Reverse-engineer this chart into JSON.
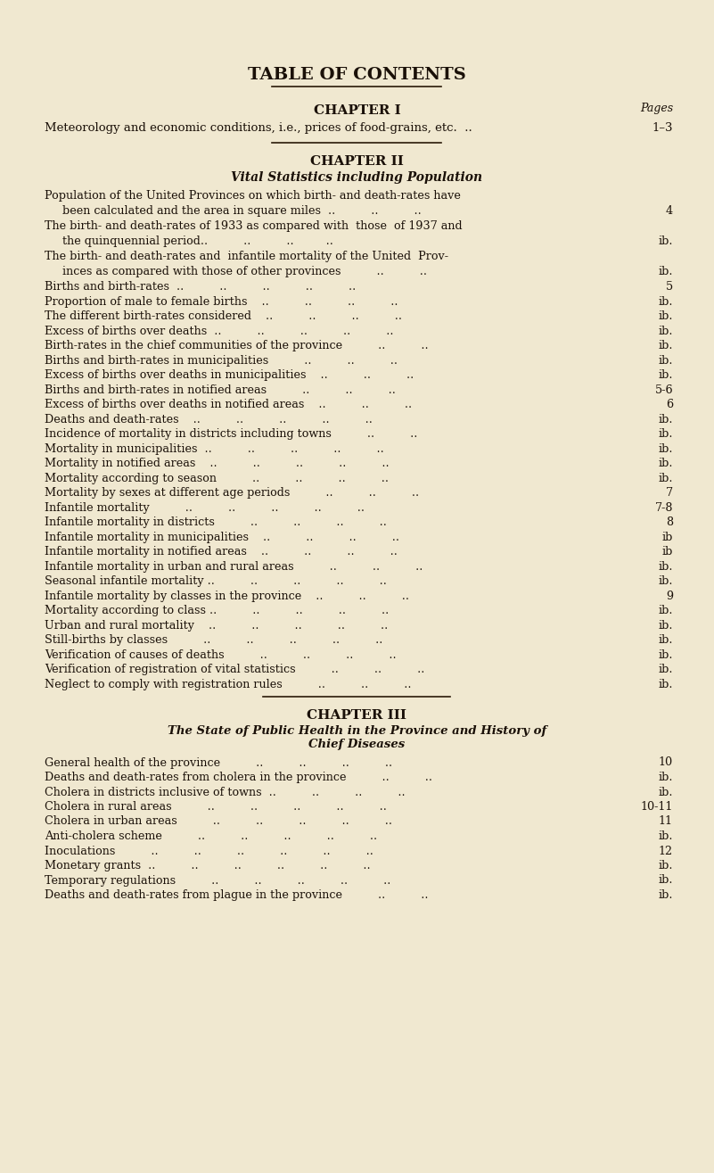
{
  "bg_color": "#f0e8d0",
  "text_color": "#1a1008",
  "title": "TABLE OF CONTENTS",
  "pages_label": "Pages",
  "chapter1_heading": "CHAPTER I",
  "chapter1_entry": "Meteorology and economic conditions, i.e., prices of food-grains, etc.  ..",
  "chapter1_page": "1–3",
  "chapter2_heading": "CHAPTER II",
  "chapter2_subtitle": "Vital Statistics including Population",
  "chapter2_entries": [
    {
      "line1": "Population of the United Provinces on which birth- and death-rates have",
      "line2": "     been calculated and the area in square miles  ..          ..          ..",
      "page": "4"
    },
    {
      "line1": "The birth- and death-rates of 1933 as compared with  those  of 1937 and",
      "line2": "     the quinquennial period..          ..          ..         ..",
      "page": "ib."
    },
    {
      "line1": "The birth- and death-rates and  infantile mortality of the United  Prov-",
      "line2": "     inces as compared with those of other provinces          ..          ..",
      "page": "ib."
    },
    {
      "line1": "Births and birth-rates  ..          ..          ..          ..          ..",
      "line2": null,
      "page": "5"
    },
    {
      "line1": "Proportion of male to female births    ..          ..          ..          ..",
      "line2": null,
      "page": "ib."
    },
    {
      "line1": "The different birth-rates considered    ..          ..          ..          ..",
      "line2": null,
      "page": "ib."
    },
    {
      "line1": "Excess of births over deaths  ..          ..          ..          ..          ..",
      "line2": null,
      "page": "ib."
    },
    {
      "line1": "Birth-rates in the chief communities of the province          ..          ..",
      "line2": null,
      "page": "ib."
    },
    {
      "line1": "Births and birth-rates in municipalities          ..          ..          ..",
      "line2": null,
      "page": "ib."
    },
    {
      "line1": "Excess of births over deaths in municipalities    ..          ..          ..",
      "line2": null,
      "page": "ib."
    },
    {
      "line1": "Births and birth-rates in notified areas          ..          ..          ..",
      "line2": null,
      "page": "5-6"
    },
    {
      "line1": "Excess of births over deaths in notified areas    ..          ..          ..",
      "line2": null,
      "page": "6"
    },
    {
      "line1": "Deaths and death-rates    ..          ..          ..          ..          ..",
      "line2": null,
      "page": "ib."
    },
    {
      "line1": "Incidence of mortality in districts including towns          ..          ..",
      "line2": null,
      "page": "ib."
    },
    {
      "line1": "Mortality in municipalities  ..          ..          ..          ..          ..",
      "line2": null,
      "page": "ib."
    },
    {
      "line1": "Mortality in notified areas    ..          ..          ..          ..          ..",
      "line2": null,
      "page": "ib."
    },
    {
      "line1": "Mortality according to season          ..          ..          ..          ..",
      "line2": null,
      "page": "ib."
    },
    {
      "line1": "Mortality by sexes at different age periods          ..          ..          ..",
      "line2": null,
      "page": "7"
    },
    {
      "line1": "Infantile mortality          ..          ..          ..          ..          ..",
      "line2": null,
      "page": "7-8"
    },
    {
      "line1": "Infantile mortality in districts          ..          ..          ..          ..",
      "line2": null,
      "page": "8"
    },
    {
      "line1": "Infantile mortality in municipalities    ..          ..          ..          ..",
      "line2": null,
      "page": "ib"
    },
    {
      "line1": "Infantile mortality in notified areas    ..          ..          ..          ..",
      "line2": null,
      "page": "ib"
    },
    {
      "line1": "Infantile mortality in urban and rural areas          ..          ..          ..",
      "line2": null,
      "page": "ib."
    },
    {
      "line1": "Seasonal infantile mortality ..          ..          ..          ..          ..",
      "line2": null,
      "page": "ib."
    },
    {
      "line1": "Infantile mortality by classes in the province    ..          ..          ..",
      "line2": null,
      "page": "9"
    },
    {
      "line1": "Mortality according to class ..          ..          ..          ..          ..",
      "line2": null,
      "page": "ib."
    },
    {
      "line1": "Urban and rural mortality    ..          ..          ..          ..          ..",
      "line2": null,
      "page": "ib."
    },
    {
      "line1": "Still-births by classes          ..          ..          ..          ..          ..",
      "line2": null,
      "page": "ib."
    },
    {
      "line1": "Verification of causes of deaths          ..          ..          ..          ..",
      "line2": null,
      "page": "ib."
    },
    {
      "line1": "Verification of registration of vital statistics          ..          ..          ..",
      "line2": null,
      "page": "ib."
    },
    {
      "line1": "Neglect to comply with registration rules          ..          ..          ..",
      "line2": null,
      "page": "ib."
    }
  ],
  "chapter3_heading": "CHAPTER III",
  "chapter3_subtitle1": "The State of Public Health in the Province and History of",
  "chapter3_subtitle2": "Chief Diseases",
  "chapter3_entries": [
    {
      "line1": "General health of the province          ..          ..          ..          ..",
      "line2": null,
      "page": "10"
    },
    {
      "line1": "Deaths and death-rates from cholera in the province          ..          ..",
      "line2": null,
      "page": "ib."
    },
    {
      "line1": "Cholera in districts inclusive of towns  ..          ..          ..          ..",
      "line2": null,
      "page": "ib."
    },
    {
      "line1": "Cholera in rural areas          ..          ..          ..          ..          ..",
      "line2": null,
      "page": "10-11"
    },
    {
      "line1": "Cholera in urban areas          ..          ..          ..          ..          ..",
      "line2": null,
      "page": "11"
    },
    {
      "line1": "Anti-cholera scheme          ..          ..          ..          ..          ..",
      "line2": null,
      "page": "ib."
    },
    {
      "line1": "Inoculations          ..          ..          ..          ..          ..          ..",
      "line2": null,
      "page": "12"
    },
    {
      "line1": "Monetary grants  ..          ..          ..          ..          ..          ..",
      "line2": null,
      "page": "ib."
    },
    {
      "line1": "Temporary regulations          ..          ..          ..          ..          ..",
      "line2": null,
      "page": "ib."
    },
    {
      "line1": "Deaths and death-rates from plague in the province          ..          ..",
      "line2": null,
      "page": "ib."
    }
  ]
}
